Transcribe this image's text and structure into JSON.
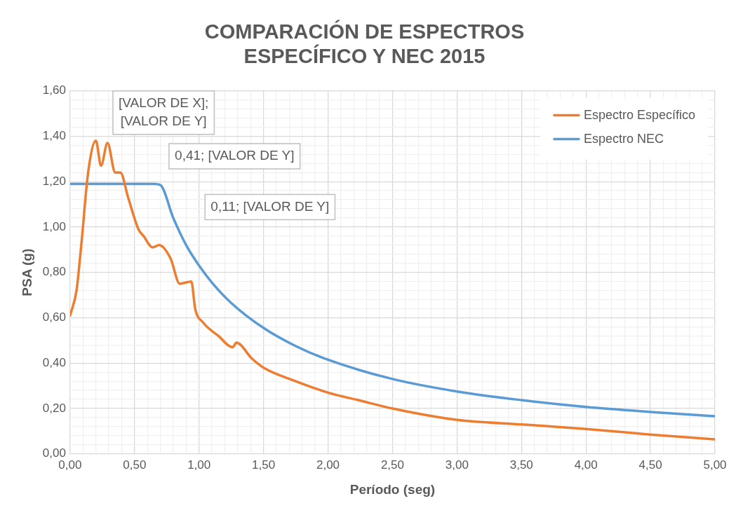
{
  "chart_data": {
    "type": "line",
    "title": "COMPARACIÓN DE ESPECTROS\nESPECÍFICO Y NEC 2015",
    "xlabel": "Período (seg)",
    "ylabel": "PSA (g)",
    "xlim": [
      0,
      5
    ],
    "ylim": [
      0,
      1.6
    ],
    "xticks": [
      {
        "value": 0,
        "label": "0,00"
      },
      {
        "value": 0.1,
        "label": null
      },
      {
        "value": 0.2,
        "label": null
      },
      {
        "value": 0.3,
        "label": null
      },
      {
        "value": 0.4,
        "label": null
      },
      {
        "value": 0.5,
        "label": "0,50"
      },
      {
        "value": 0.6,
        "label": null
      },
      {
        "value": 0.7,
        "label": null
      },
      {
        "value": 0.8,
        "label": null
      },
      {
        "value": 0.9,
        "label": null
      },
      {
        "value": 1,
        "label": "1,00"
      },
      {
        "value": 1.1,
        "label": null
      },
      {
        "value": 1.2,
        "label": null
      },
      {
        "value": 1.3,
        "label": null
      },
      {
        "value": 1.4,
        "label": null
      },
      {
        "value": 1.5,
        "label": "1,50"
      },
      {
        "value": 1.6,
        "label": null
      },
      {
        "value": 1.7,
        "label": null
      },
      {
        "value": 1.8,
        "label": null
      },
      {
        "value": 1.9,
        "label": null
      },
      {
        "value": 2,
        "label": "2,00"
      },
      {
        "value": 2.1,
        "label": null
      },
      {
        "value": 2.2,
        "label": null
      },
      {
        "value": 2.3,
        "label": null
      },
      {
        "value": 2.4,
        "label": null
      },
      {
        "value": 2.5,
        "label": "2,50"
      },
      {
        "value": 2.6,
        "label": null
      },
      {
        "value": 2.7,
        "label": null
      },
      {
        "value": 2.8,
        "label": null
      },
      {
        "value": 2.9,
        "label": null
      },
      {
        "value": 3,
        "label": "3,00"
      },
      {
        "value": 3.1,
        "label": null
      },
      {
        "value": 3.2,
        "label": null
      },
      {
        "value": 3.3,
        "label": null
      },
      {
        "value": 3.4,
        "label": null
      },
      {
        "value": 3.5,
        "label": "3,50"
      },
      {
        "value": 3.6,
        "label": null
      },
      {
        "value": 3.7,
        "label": null
      },
      {
        "value": 3.8,
        "label": null
      },
      {
        "value": 3.9,
        "label": null
      },
      {
        "value": 4,
        "label": "4,00"
      },
      {
        "value": 4.1,
        "label": null
      },
      {
        "value": 4.2,
        "label": null
      },
      {
        "value": 4.3,
        "label": null
      },
      {
        "value": 4.4,
        "label": null
      },
      {
        "value": 4.5,
        "label": "4,50"
      },
      {
        "value": 4.6,
        "label": null
      },
      {
        "value": 4.7,
        "label": null
      },
      {
        "value": 4.8,
        "label": null
      },
      {
        "value": 4.9,
        "label": null
      },
      {
        "value": 5,
        "label": "5,00"
      }
    ],
    "yticks": [
      {
        "value": 0,
        "label": "0,00"
      },
      {
        "value": 0.04,
        "label": null
      },
      {
        "value": 0.08,
        "label": null
      },
      {
        "value": 0.12,
        "label": null
      },
      {
        "value": 0.16,
        "label": null
      },
      {
        "value": 0.2,
        "label": "0,20"
      },
      {
        "value": 0.24,
        "label": null
      },
      {
        "value": 0.28,
        "label": null
      },
      {
        "value": 0.32,
        "label": null
      },
      {
        "value": 0.36,
        "label": null
      },
      {
        "value": 0.4,
        "label": "0,40"
      },
      {
        "value": 0.44,
        "label": null
      },
      {
        "value": 0.48,
        "label": null
      },
      {
        "value": 0.52,
        "label": null
      },
      {
        "value": 0.56,
        "label": null
      },
      {
        "value": 0.6,
        "label": "0,60"
      },
      {
        "value": 0.64,
        "label": null
      },
      {
        "value": 0.68,
        "label": null
      },
      {
        "value": 0.72,
        "label": null
      },
      {
        "value": 0.76,
        "label": null
      },
      {
        "value": 0.8,
        "label": "0,80"
      },
      {
        "value": 0.84,
        "label": null
      },
      {
        "value": 0.88,
        "label": null
      },
      {
        "value": 0.92,
        "label": null
      },
      {
        "value": 0.96,
        "label": null
      },
      {
        "value": 1,
        "label": "1,00"
      },
      {
        "value": 1.04,
        "label": null
      },
      {
        "value": 1.08,
        "label": null
      },
      {
        "value": 1.12,
        "label": null
      },
      {
        "value": 1.16,
        "label": null
      },
      {
        "value": 1.2,
        "label": "1,20"
      },
      {
        "value": 1.24,
        "label": null
      },
      {
        "value": 1.28,
        "label": null
      },
      {
        "value": 1.32,
        "label": null
      },
      {
        "value": 1.36,
        "label": null
      },
      {
        "value": 1.4,
        "label": "1,40"
      },
      {
        "value": 1.44,
        "label": null
      },
      {
        "value": 1.48,
        "label": null
      },
      {
        "value": 1.52,
        "label": null
      },
      {
        "value": 1.56,
        "label": null
      },
      {
        "value": 1.6,
        "label": "1,60"
      }
    ],
    "grid": true,
    "legend": "top right",
    "marker": "none",
    "line_style": "solid",
    "series": [
      {
        "name": "Espectro Específico",
        "color": "#ed7d31",
        "x": [
          0,
          0.05,
          0.09,
          0.14,
          0.2,
          0.24,
          0.29,
          0.35,
          0.39,
          0.45,
          0.53,
          0.57,
          0.64,
          0.69,
          0.78,
          0.85,
          0.94,
          0.97,
          1.03,
          1.15,
          1.26,
          1.29,
          1.41,
          1.5,
          1.75,
          2,
          2.25,
          2.5,
          3,
          3.5,
          4,
          4.5,
          5
        ],
        "values": [
          0.61,
          0.72,
          0.94,
          1.24,
          1.38,
          1.27,
          1.37,
          1.24,
          1.24,
          1.13,
          0.99,
          0.96,
          0.91,
          0.92,
          0.86,
          0.75,
          0.76,
          0.64,
          0.58,
          0.52,
          0.47,
          0.49,
          0.42,
          0.38,
          0.32,
          0.27,
          0.235,
          0.2,
          0.15,
          0.13,
          0.11,
          0.085,
          0.064
        ]
      },
      {
        "name": "Espectro NEC",
        "color": "#5b9bd5",
        "x": [
          0,
          0.65,
          0.7,
          0.8,
          0.9,
          1,
          1.1,
          1.25,
          1.5,
          1.75,
          2,
          2.5,
          3,
          3.5,
          4,
          4.5,
          5
        ],
        "values": [
          1.19,
          1.19,
          1.185,
          1.04,
          0.92,
          0.83,
          0.755,
          0.665,
          0.555,
          0.475,
          0.415,
          0.33,
          0.275,
          0.237,
          0.207,
          0.185,
          0.166
        ]
      }
    ],
    "annotations": [
      "[VALOR DE X];\n[VALOR DE Y]",
      "0,41; [VALOR DE Y]",
      "0,11; [VALOR DE Y]"
    ]
  }
}
